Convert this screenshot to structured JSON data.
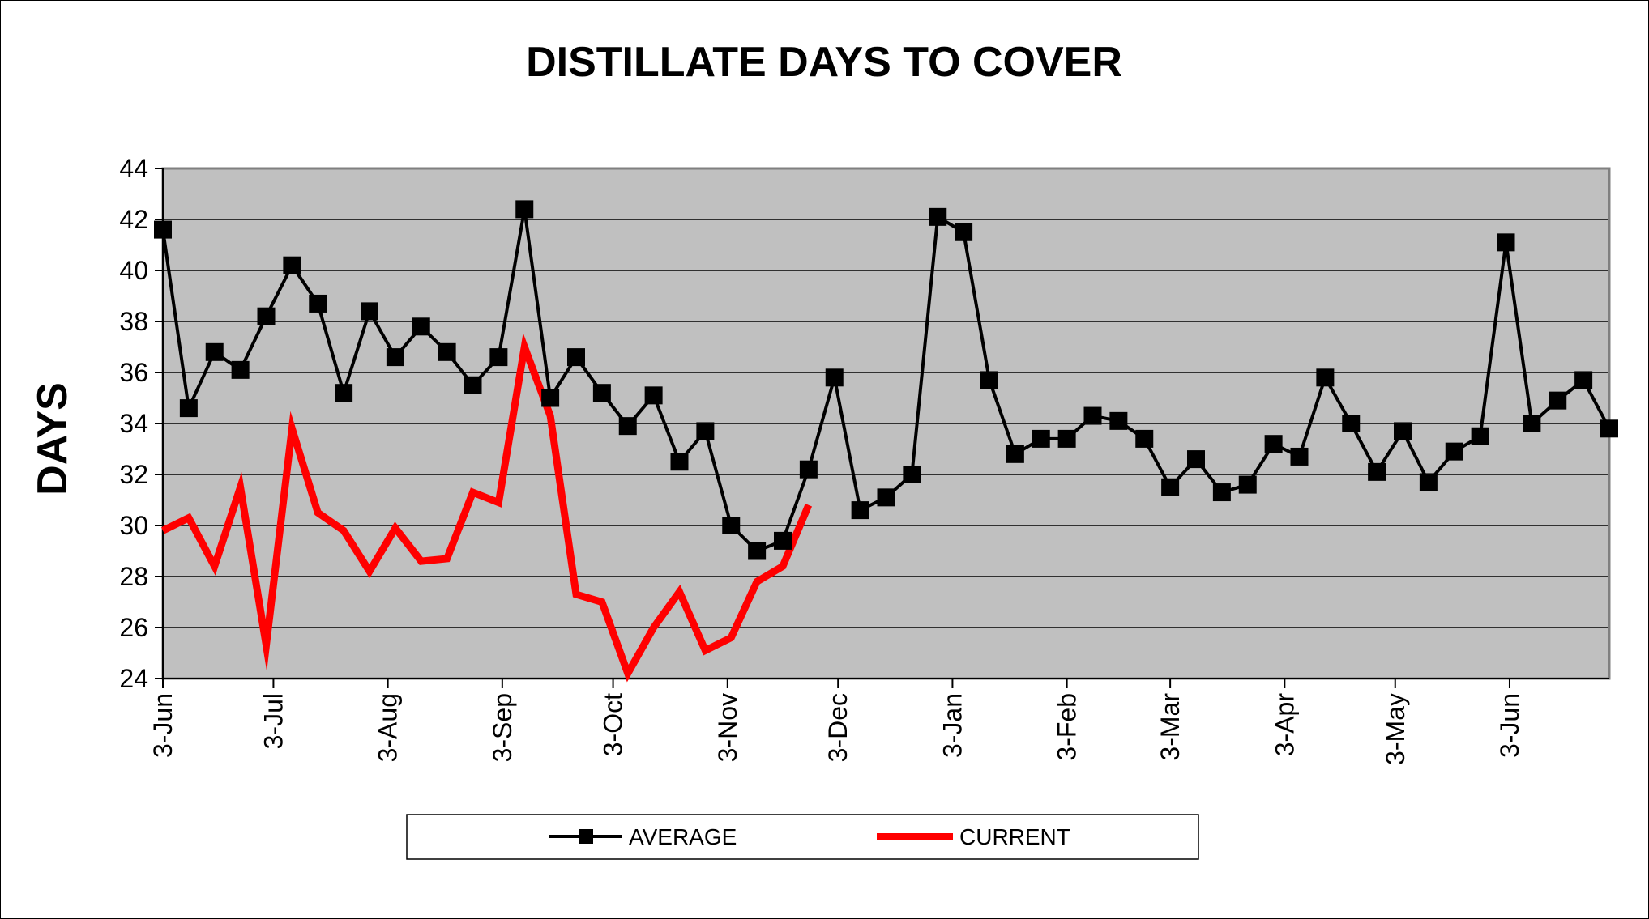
{
  "chart_data": {
    "type": "line",
    "title": "DISTILLATE DAYS TO COVER",
    "xlabel": "",
    "ylabel": "DAYS",
    "ylim": [
      24,
      44
    ],
    "y_ticks": [
      "24",
      "26",
      "28",
      "30",
      "32",
      "34",
      "36",
      "38",
      "40",
      "42",
      "44"
    ],
    "x_ticks": [
      "3-Jun",
      "3-Jul",
      "3-Aug",
      "3-Sep",
      "3-Oct",
      "3-Nov",
      "3-Dec",
      "3-Jan",
      "3-Feb",
      "3-Mar",
      "3-Apr",
      "3-May",
      "3-Jun"
    ],
    "x_tick_weeks": [
      0,
      4.28,
      8.71,
      13.14,
      17.43,
      21.86,
      26.14,
      30.57,
      35,
      39,
      43.43,
      47.71,
      52.14
    ],
    "grid": true,
    "plot_background": "#c0c0c0",
    "legend_position": "bottom",
    "series": [
      {
        "name": "AVERAGE",
        "color": "#000000",
        "marker": "square",
        "values": [
          41.6,
          34.6,
          36.8,
          36.1,
          38.2,
          40.2,
          38.7,
          35.2,
          38.4,
          36.6,
          37.8,
          36.8,
          35.5,
          36.6,
          42.4,
          35.0,
          36.6,
          35.2,
          33.9,
          35.1,
          32.5,
          33.7,
          30.0,
          29.0,
          29.4,
          32.2,
          35.8,
          30.6,
          31.1,
          32.0,
          42.1,
          41.5,
          35.7,
          32.8,
          33.4,
          33.4,
          34.3,
          34.1,
          33.4,
          31.5,
          32.6,
          31.3,
          31.6,
          33.2,
          32.7,
          35.8,
          34.0,
          32.1,
          33.7,
          31.7,
          32.9,
          33.5,
          41.1,
          34.0,
          34.9,
          35.7,
          33.8
        ]
      },
      {
        "name": "CURRENT",
        "color": "#ff0000",
        "marker": "none",
        "values": [
          29.8,
          30.3,
          28.4,
          31.5,
          25.3,
          33.8,
          30.5,
          29.8,
          28.2,
          29.9,
          28.6,
          28.7,
          31.3,
          30.9,
          37.0,
          34.3,
          27.3,
          27.0,
          24.2,
          26.0,
          27.4,
          25.1,
          25.6,
          27.8,
          28.4,
          30.8
        ]
      }
    ]
  }
}
